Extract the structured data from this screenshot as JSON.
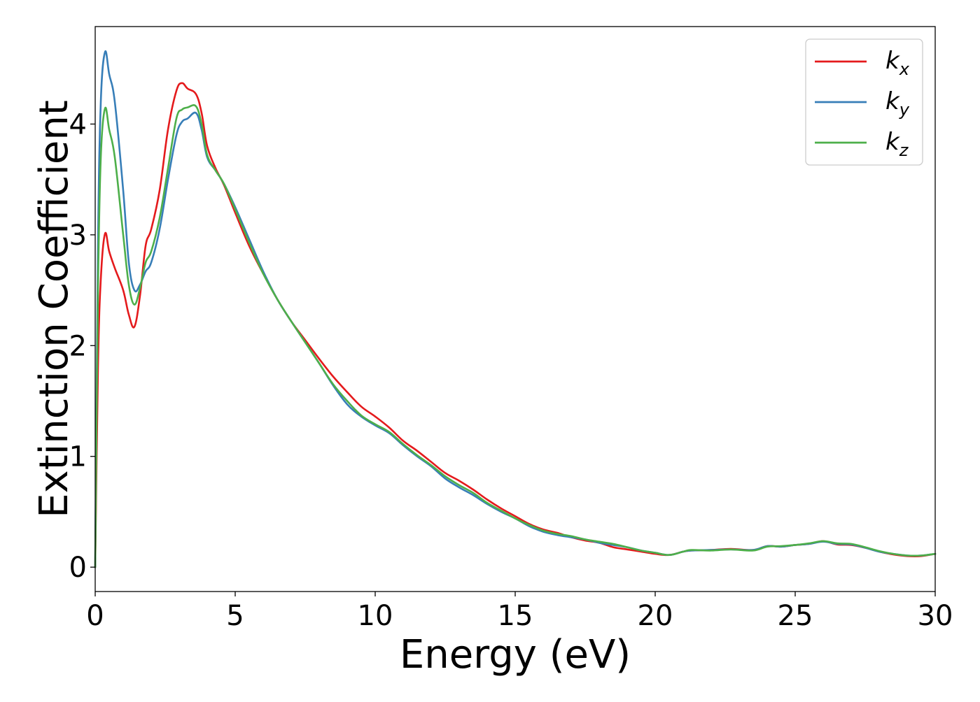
{
  "chart_data": {
    "type": "line",
    "title": "",
    "xlabel": "Energy (eV)",
    "ylabel": "Extinction Coefficient",
    "xlim": [
      0,
      30
    ],
    "ylim": [
      -0.22,
      4.88
    ],
    "xticks": [
      0,
      5,
      10,
      15,
      20,
      25,
      30
    ],
    "xtick_labels": [
      "0",
      "5",
      "10",
      "15",
      "20",
      "25",
      "30"
    ],
    "yticks": [
      0,
      1,
      2,
      3,
      4
    ],
    "ytick_labels": [
      "0",
      "1",
      "2",
      "3",
      "4"
    ],
    "grid": false,
    "legend_position": "top-right",
    "series": [
      {
        "name": "kx",
        "label_base": "k",
        "label_sub": "x",
        "color": "#e41a1c",
        "x": [
          0,
          0.1,
          0.2,
          0.35,
          0.5,
          0.7,
          1.0,
          1.2,
          1.4,
          1.6,
          1.8,
          2.0,
          2.3,
          2.6,
          2.9,
          3.1,
          3.3,
          3.6,
          3.8,
          4.0,
          4.3,
          4.6,
          5.0,
          5.5,
          6.0,
          6.5,
          7.0,
          7.5,
          8.0,
          8.5,
          9.0,
          9.5,
          10.0,
          10.5,
          11.0,
          11.5,
          12.0,
          12.5,
          13.0,
          13.5,
          14.0,
          14.5,
          15.0,
          15.5,
          16.0,
          16.5,
          17.0,
          17.5,
          18.0,
          18.5,
          19.0,
          19.5,
          20.0,
          20.5,
          21.0,
          21.3,
          22.0,
          22.7,
          23.5,
          24.0,
          24.5,
          25.0,
          25.5,
          26.0,
          26.5,
          27.0,
          27.5,
          28.0,
          28.5,
          29.0,
          29.5,
          30.0
        ],
        "y": [
          0,
          1.8,
          2.6,
          3.01,
          2.85,
          2.7,
          2.5,
          2.28,
          2.17,
          2.45,
          2.9,
          3.05,
          3.4,
          3.95,
          4.3,
          4.37,
          4.32,
          4.27,
          4.1,
          3.8,
          3.6,
          3.45,
          3.2,
          2.9,
          2.65,
          2.42,
          2.22,
          2.05,
          1.88,
          1.72,
          1.58,
          1.45,
          1.36,
          1.26,
          1.14,
          1.05,
          0.95,
          0.85,
          0.78,
          0.7,
          0.61,
          0.53,
          0.46,
          0.39,
          0.34,
          0.31,
          0.27,
          0.24,
          0.22,
          0.18,
          0.16,
          0.14,
          0.12,
          0.11,
          0.14,
          0.15,
          0.155,
          0.165,
          0.155,
          0.19,
          0.185,
          0.2,
          0.21,
          0.235,
          0.205,
          0.2,
          0.175,
          0.14,
          0.115,
          0.1,
          0.1,
          0.12
        ]
      },
      {
        "name": "ky",
        "label_base": "k",
        "label_sub": "y",
        "color": "#377eb8",
        "x": [
          0,
          0.1,
          0.2,
          0.35,
          0.5,
          0.7,
          1.0,
          1.2,
          1.4,
          1.6,
          1.8,
          2.0,
          2.3,
          2.6,
          2.9,
          3.1,
          3.3,
          3.6,
          3.8,
          4.0,
          4.3,
          4.6,
          5.0,
          5.5,
          6.0,
          6.5,
          7.0,
          7.5,
          8.0,
          8.5,
          9.0,
          9.5,
          10.0,
          10.5,
          11.0,
          11.5,
          12.0,
          12.5,
          13.0,
          13.5,
          14.0,
          14.5,
          15.0,
          15.5,
          16.0,
          16.5,
          17.0,
          17.5,
          18.0,
          18.5,
          19.0,
          19.5,
          20.0,
          20.5,
          21.0,
          21.3,
          22.0,
          22.7,
          23.5,
          24.0,
          24.5,
          25.0,
          25.5,
          26.0,
          26.5,
          27.0,
          27.5,
          28.0,
          28.5,
          29.0,
          29.5,
          30.0
        ],
        "y": [
          0,
          2.9,
          4.2,
          4.65,
          4.45,
          4.2,
          3.4,
          2.75,
          2.5,
          2.55,
          2.67,
          2.75,
          3.05,
          3.5,
          3.9,
          4.02,
          4.05,
          4.1,
          3.95,
          3.7,
          3.58,
          3.46,
          3.25,
          2.96,
          2.67,
          2.42,
          2.22,
          2.03,
          1.84,
          1.64,
          1.47,
          1.36,
          1.28,
          1.21,
          1.1,
          1.0,
          0.91,
          0.8,
          0.72,
          0.65,
          0.57,
          0.5,
          0.44,
          0.37,
          0.32,
          0.29,
          0.27,
          0.25,
          0.22,
          0.2,
          0.18,
          0.15,
          0.13,
          0.11,
          0.14,
          0.15,
          0.155,
          0.16,
          0.155,
          0.19,
          0.185,
          0.2,
          0.21,
          0.23,
          0.21,
          0.205,
          0.175,
          0.14,
          0.12,
          0.105,
          0.105,
          0.12
        ]
      },
      {
        "name": "kz",
        "label_base": "k",
        "label_sub": "z",
        "color": "#4daf4a",
        "x": [
          0,
          0.1,
          0.2,
          0.35,
          0.5,
          0.7,
          1.0,
          1.2,
          1.4,
          1.6,
          1.8,
          2.0,
          2.3,
          2.6,
          2.9,
          3.1,
          3.3,
          3.6,
          3.8,
          4.0,
          4.3,
          4.6,
          5.0,
          5.5,
          6.0,
          6.5,
          7.0,
          7.5,
          8.0,
          8.5,
          9.0,
          9.5,
          10.0,
          10.5,
          11.0,
          11.5,
          12.0,
          12.5,
          13.0,
          13.5,
          14.0,
          14.5,
          15.0,
          15.5,
          16.0,
          16.5,
          17.0,
          17.5,
          18.0,
          18.5,
          19.0,
          19.5,
          20.0,
          20.5,
          21.0,
          21.3,
          22.0,
          22.7,
          23.5,
          24.0,
          24.5,
          25.0,
          25.5,
          26.0,
          26.5,
          27.0,
          27.5,
          28.0,
          28.5,
          29.0,
          29.5,
          30.0
        ],
        "y": [
          0,
          2.5,
          3.7,
          4.14,
          3.95,
          3.7,
          3.0,
          2.55,
          2.37,
          2.52,
          2.75,
          2.85,
          3.15,
          3.6,
          4.05,
          4.13,
          4.15,
          4.16,
          4.0,
          3.72,
          3.58,
          3.46,
          3.23,
          2.93,
          2.65,
          2.42,
          2.22,
          2.03,
          1.84,
          1.65,
          1.5,
          1.37,
          1.29,
          1.22,
          1.11,
          1.01,
          0.92,
          0.82,
          0.74,
          0.67,
          0.58,
          0.51,
          0.44,
          0.38,
          0.33,
          0.3,
          0.28,
          0.25,
          0.23,
          0.21,
          0.18,
          0.15,
          0.13,
          0.11,
          0.14,
          0.155,
          0.15,
          0.16,
          0.15,
          0.185,
          0.19,
          0.2,
          0.215,
          0.235,
          0.215,
          0.21,
          0.18,
          0.145,
          0.12,
          0.105,
          0.105,
          0.12
        ]
      }
    ]
  }
}
